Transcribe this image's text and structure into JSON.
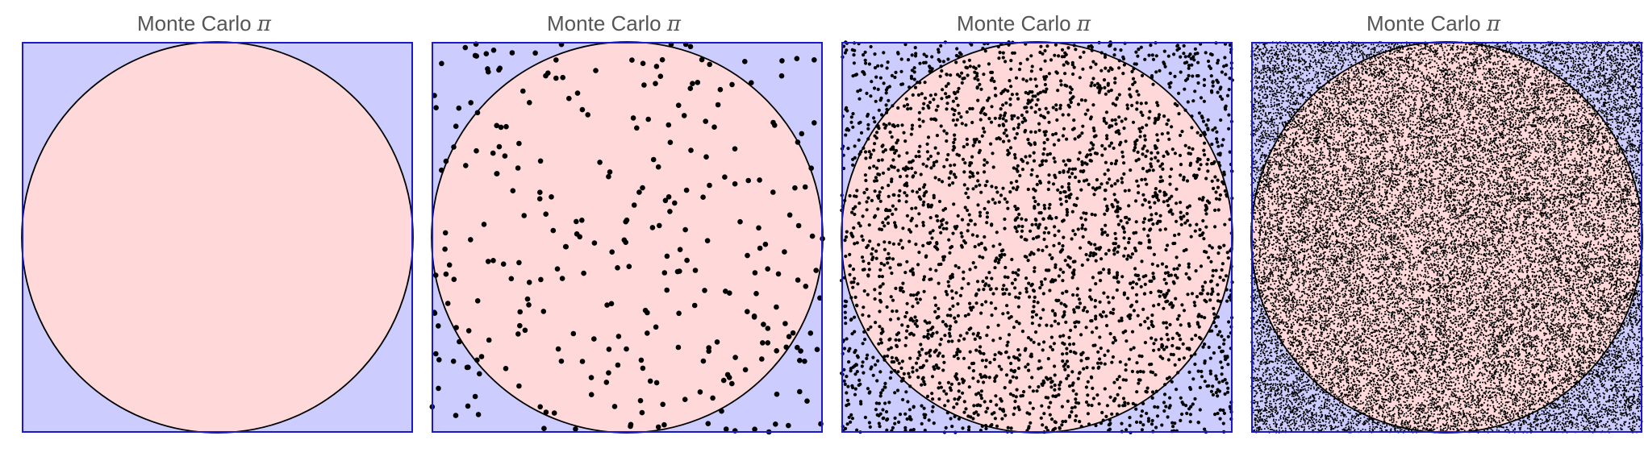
{
  "figure": {
    "colors": {
      "square_fill": "#ccccff",
      "square_border": "#1a1acc",
      "circle_fill": "#ffd9d9",
      "circle_border": "#000000",
      "point": "#000000"
    }
  },
  "chart_data": [
    {
      "type": "scatter",
      "title": "Monte Carlo",
      "title_symbol": "π",
      "xlim": [
        -1,
        1
      ],
      "ylim": [
        -1,
        1
      ],
      "grid": false,
      "n_points": 0,
      "seed": 11,
      "point_radius": 0,
      "shapes": [
        "square",
        "inscribed-circle"
      ]
    },
    {
      "type": "scatter",
      "title": "Monte Carlo",
      "title_symbol": "π",
      "xlim": [
        -1,
        1
      ],
      "ylim": [
        -1,
        1
      ],
      "grid": false,
      "n_points": 300,
      "seed": 23,
      "point_radius": 3.3,
      "shapes": [
        "square",
        "inscribed-circle"
      ]
    },
    {
      "type": "scatter",
      "title": "Monte Carlo",
      "title_symbol": "π",
      "xlim": [
        -1,
        1
      ],
      "ylim": [
        -1,
        1
      ],
      "grid": false,
      "n_points": 3000,
      "seed": 47,
      "point_radius": 2.1,
      "shapes": [
        "square",
        "inscribed-circle"
      ]
    },
    {
      "type": "scatter",
      "title": "Monte Carlo",
      "title_symbol": "π",
      "xlim": [
        -1,
        1
      ],
      "ylim": [
        -1,
        1
      ],
      "grid": false,
      "n_points": 30000,
      "seed": 89,
      "point_radius": 1.0,
      "shapes": [
        "square",
        "inscribed-circle"
      ]
    }
  ]
}
